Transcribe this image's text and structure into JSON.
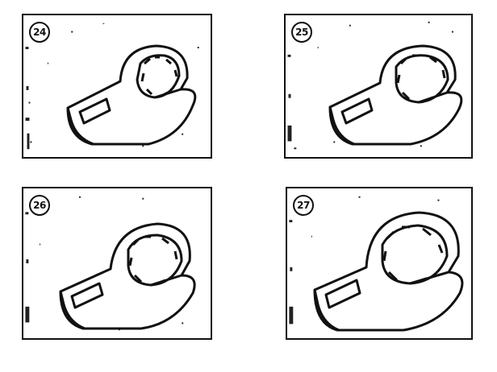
{
  "figures": [
    {
      "number": "24",
      "icon": "crowfoot-flare-nut-wrench-icon"
    },
    {
      "number": "25",
      "icon": "crowfoot-flare-nut-wrench-icon"
    },
    {
      "number": "26",
      "icon": "crowfoot-flare-nut-wrench-icon"
    },
    {
      "number": "27",
      "icon": "crowfoot-flare-nut-wrench-icon"
    }
  ],
  "colors": {
    "ink": "#111111",
    "paper": "#ffffff"
  }
}
